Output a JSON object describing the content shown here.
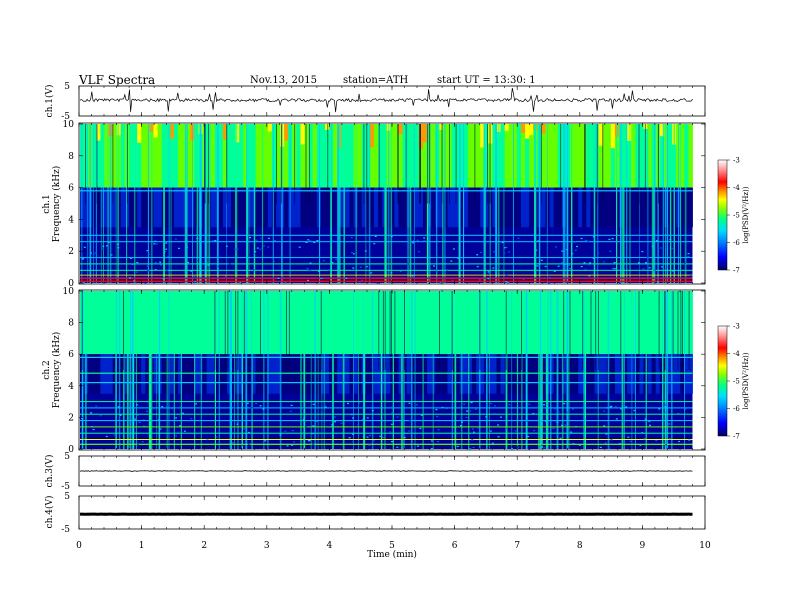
{
  "header": {
    "title": "VLF Spectra",
    "date": "Nov.13, 2015",
    "station": "station=ATH",
    "start": "start UT = 13:30: 1"
  },
  "chart_data": [
    {
      "type": "line",
      "panel": "ch1-waveform",
      "ylabel": "ch.1(V)",
      "ylim": [
        -5,
        5
      ],
      "yticks": [
        "5",
        "-5"
      ],
      "description_level": 0.3
    },
    {
      "type": "heatmap",
      "panel": "ch1-spectrogram",
      "ylabel_top": "ch.1",
      "ylabel": "Frequency (kHz)",
      "ylim": [
        0,
        10
      ],
      "yticks": [
        "0",
        "2",
        "4",
        "6",
        "8",
        "10"
      ],
      "colorbar": {
        "label": "log(PSD(V²/Hz))",
        "range": [
          -7,
          -3
        ],
        "ticks": [
          "-3",
          "-4",
          "-5",
          "-6",
          "-7"
        ]
      }
    },
    {
      "type": "heatmap",
      "panel": "ch2-spectrogram",
      "ylabel_top": "ch.2",
      "ylabel": "Frequency (kHz)",
      "ylim": [
        0,
        10
      ],
      "yticks": [
        "0",
        "2",
        "4",
        "6",
        "8",
        "10"
      ],
      "colorbar": {
        "label": "log(PSD(V²/Hz))",
        "range": [
          -7,
          -3
        ],
        "ticks": [
          "-3",
          "-4",
          "-5",
          "-6",
          "-7"
        ]
      }
    },
    {
      "type": "line",
      "panel": "ch3-waveform",
      "ylabel": "ch.3(V)",
      "ylim": [
        -5,
        5
      ],
      "yticks": [
        "5",
        "-5"
      ],
      "level": 0.0
    },
    {
      "type": "line",
      "panel": "ch4-waveform",
      "ylabel": "ch.4(V)",
      "ylim": [
        -5,
        5
      ],
      "yticks": [
        "5",
        "-5"
      ],
      "level": -0.5
    }
  ],
  "xaxis": {
    "label": "Time (min)",
    "xlim": [
      0,
      10
    ],
    "ticks": [
      "0",
      "1",
      "2",
      "3",
      "4",
      "5",
      "6",
      "7",
      "8",
      "9",
      "10"
    ],
    "data_end": 9.8
  },
  "colormap": [
    "#000066",
    "#0000ff",
    "#0066ff",
    "#00ccff",
    "#00ff99",
    "#66ff00",
    "#ffff00",
    "#ff9900",
    "#ff0000",
    "#ffffff"
  ]
}
